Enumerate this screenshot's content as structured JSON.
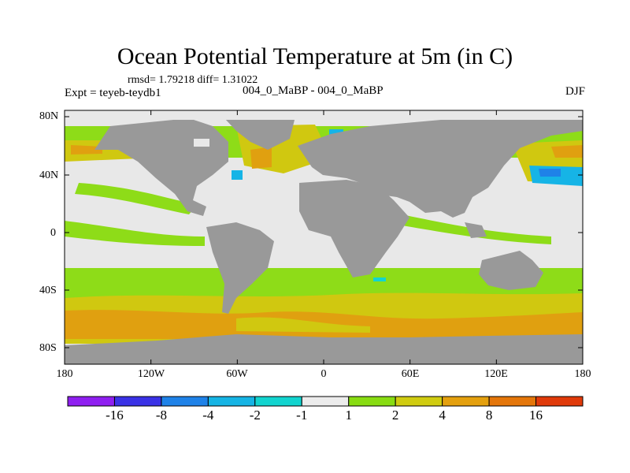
{
  "title": "Ocean Potential Temperature at 5m (in C)",
  "stats": "rmsd= 1.79218 diff= 1.31022",
  "experiment": "Expt = teyeb-teydb1",
  "comparison": "004_0_MaBP - 004_0_MaBP",
  "season": "DJF",
  "lat_labels": [
    "80N",
    "40N",
    "0",
    "40S",
    "80S"
  ],
  "lon_labels": [
    "180",
    "120W",
    "60W",
    "0",
    "60E",
    "120E",
    "180"
  ],
  "colorbar": {
    "labels": [
      "-16",
      "-8",
      "-4",
      "-2",
      "-1",
      "1",
      "2",
      "4",
      "8",
      "16"
    ],
    "colors": [
      "#8f1ff0",
      "#3a32e6",
      "#1f82e8",
      "#16b4e4",
      "#12d4cf",
      "#ececec",
      "#88dc12",
      "#d0cc10",
      "#e4a00e",
      "#e4760a",
      "#e03a0a"
    ]
  },
  "map_colors": {
    "land": "#999999",
    "near_zero": "#e8e8e8",
    "plus_1_2": "#8edc18",
    "plus_2_4": "#d0c810",
    "plus_4_8": "#e0a010",
    "minus_1_2": "#12d4d0",
    "minus_2_4": "#16b4e6",
    "minus_4_8": "#1f82e8"
  }
}
